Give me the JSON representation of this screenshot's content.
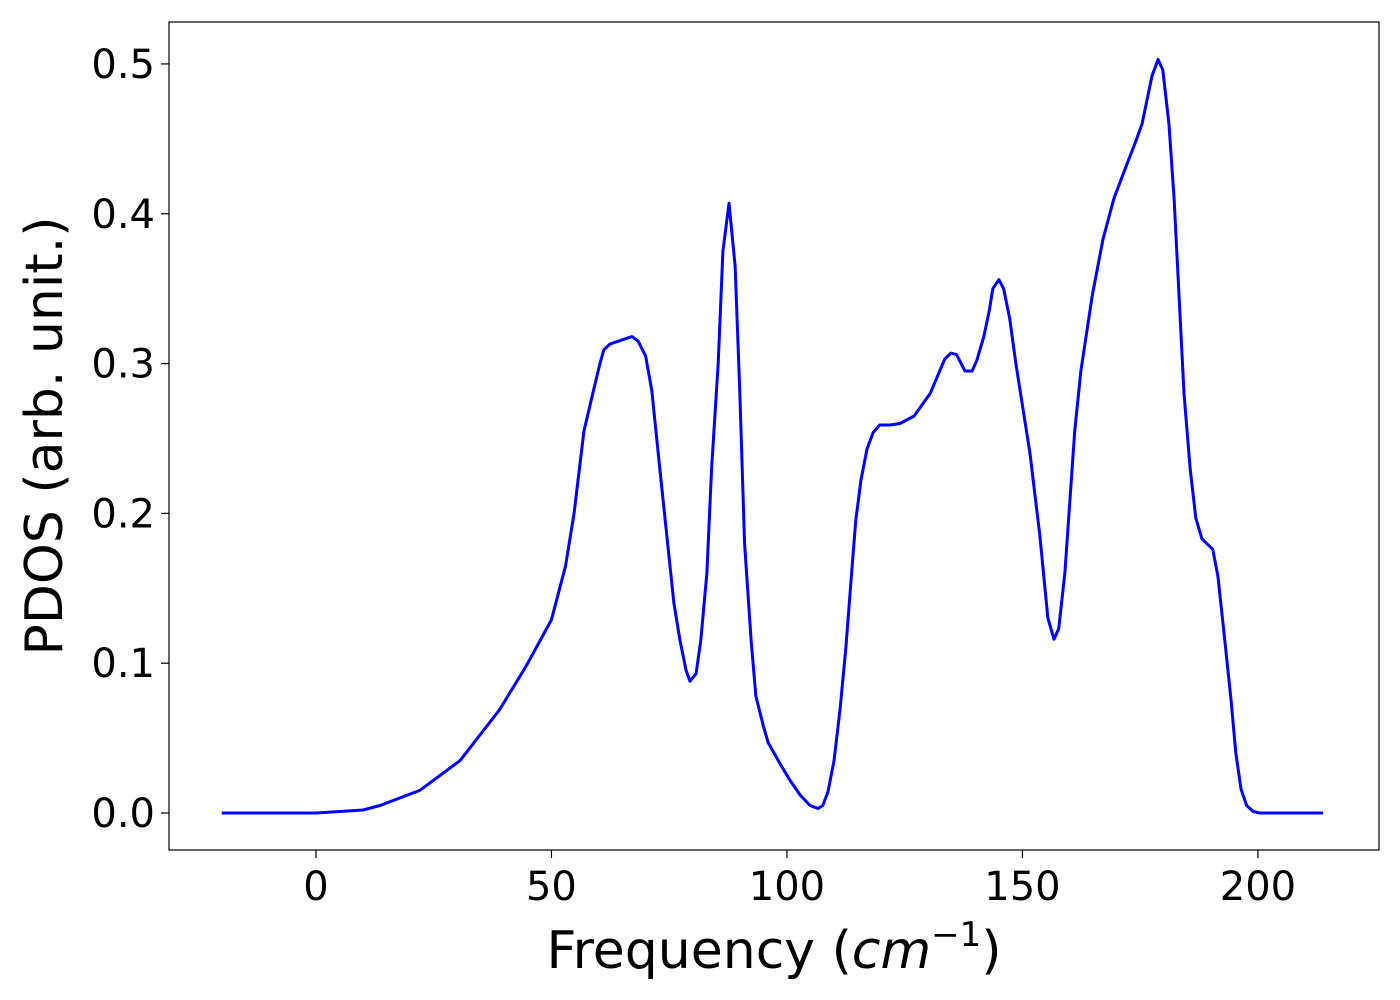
{
  "chart_data": {
    "type": "line",
    "xlabel_parts": [
      "Frequency (",
      "cm",
      "−1",
      ")"
    ],
    "ylabel": "PDOS (arb. unit.)",
    "xlim": [
      -31.2,
      225.7
    ],
    "ylim": [
      -0.0247,
      0.528
    ],
    "xticks": [
      0,
      50,
      100,
      150,
      200
    ],
    "yticks": [
      {
        "value": 0,
        "label": "0.0"
      },
      0.1,
      0.2,
      0.3,
      0.4,
      0.5
    ],
    "grid": false,
    "series": [
      {
        "name": "PDOS",
        "color": "#0000ff",
        "x": [
          -20,
          0,
          5,
          10,
          13.6,
          22,
          30.6,
          39,
          44.8,
          50,
          53,
          54.8,
          56.9,
          59,
          60.3,
          61.1,
          62.4,
          67.1,
          68.4,
          70,
          71.3,
          73,
          76,
          77.3,
          78.6,
          79.4,
          80.7,
          81.7,
          83,
          84,
          85.4,
          86.4,
          87.7,
          89,
          90,
          91,
          92.4,
          93.4,
          95,
          96,
          98.7,
          100.6,
          102.8,
          104.9,
          106.6,
          107.6,
          108.7,
          110,
          111.3,
          112.5,
          113.6,
          114.6,
          115.7,
          117,
          118.3,
          119.7,
          121.9,
          124,
          127,
          130.4,
          133.5,
          134.8,
          136,
          137.8,
          139.3,
          140.3,
          141.8,
          143,
          143.7,
          145,
          146,
          147.3,
          148.6,
          151.6,
          153.7,
          155.4,
          156.7,
          157.7,
          159,
          161.1,
          162.4,
          164.8,
          167.1,
          169.4,
          171.8,
          173.9,
          175.4,
          177.5,
          178.8,
          179.8,
          181.1,
          182.2,
          184.3,
          185.6,
          186.8,
          188.1,
          190.4,
          191.5,
          192.8,
          194.3,
          195.3,
          196.4,
          197.6,
          199,
          200.3,
          213.8
        ],
        "values": [
          0,
          0,
          0.001,
          0.002,
          0.005,
          0.015,
          0.035,
          0.069,
          0.099,
          0.129,
          0.165,
          0.2,
          0.255,
          0.283,
          0.3,
          0.309,
          0.313,
          0.318,
          0.315,
          0.305,
          0.282,
          0.23,
          0.14,
          0.115,
          0.095,
          0.088,
          0.093,
          0.115,
          0.16,
          0.23,
          0.3,
          0.375,
          0.407,
          0.365,
          0.28,
          0.18,
          0.115,
          0.078,
          0.058,
          0.047,
          0.032,
          0.022,
          0.012,
          0.005,
          0.003,
          0.005,
          0.014,
          0.035,
          0.07,
          0.11,
          0.155,
          0.195,
          0.222,
          0.243,
          0.254,
          0.259,
          0.259,
          0.26,
          0.265,
          0.28,
          0.303,
          0.307,
          0.306,
          0.295,
          0.295,
          0.302,
          0.318,
          0.336,
          0.35,
          0.356,
          0.35,
          0.33,
          0.3,
          0.24,
          0.185,
          0.13,
          0.116,
          0.123,
          0.16,
          0.255,
          0.295,
          0.345,
          0.383,
          0.41,
          0.43,
          0.447,
          0.46,
          0.492,
          0.503,
          0.496,
          0.46,
          0.41,
          0.28,
          0.23,
          0.197,
          0.183,
          0.176,
          0.158,
          0.12,
          0.075,
          0.04,
          0.016,
          0.005,
          0.001,
          0,
          0
        ]
      }
    ]
  }
}
